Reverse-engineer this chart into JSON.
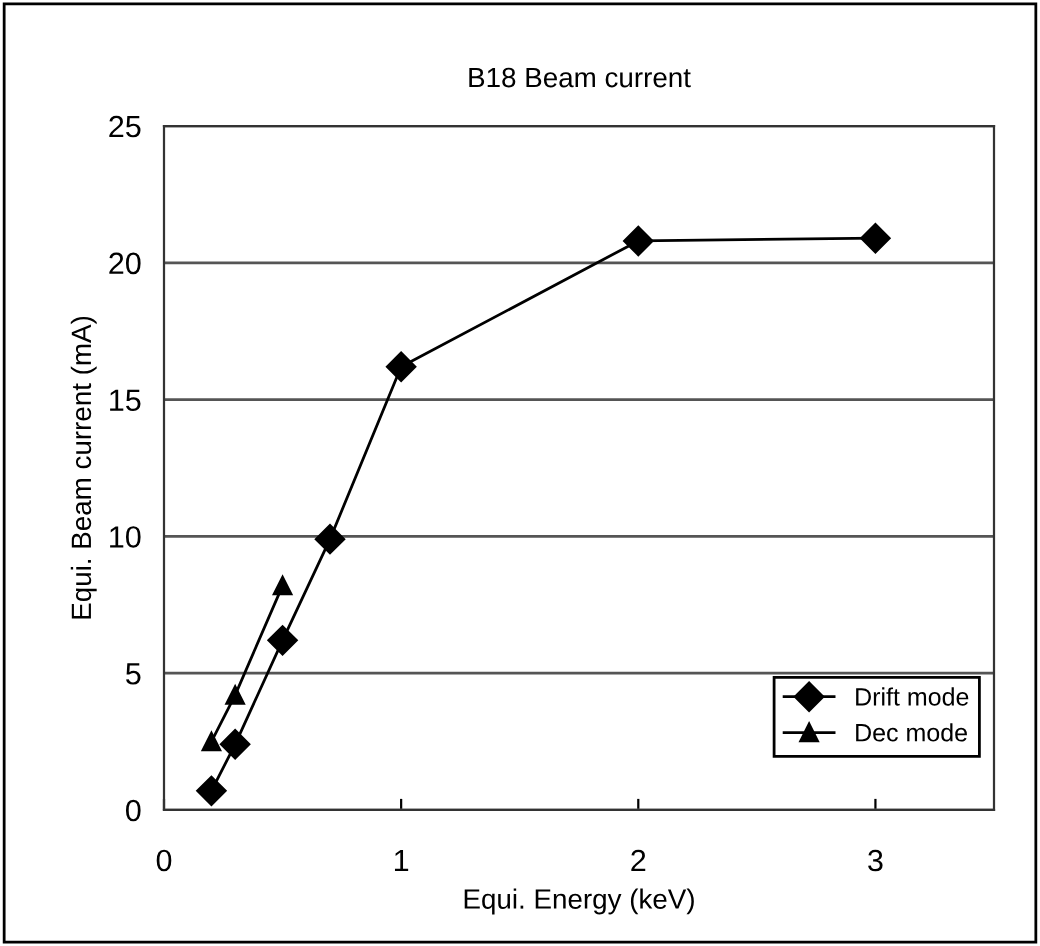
{
  "chart_data": {
    "type": "line",
    "title": "B18 Beam current",
    "xlabel": "Equi. Energy (keV)",
    "ylabel": "Equi. Beam current (mA)",
    "series": [
      {
        "name": "Drift mode",
        "color": "#000000",
        "marker": "diamond",
        "x": [
          0.2,
          0.3,
          0.5,
          0.7,
          1,
          2,
          3
        ],
        "values": [
          0.7,
          2.4,
          6.2,
          9.9,
          16.2,
          20.8,
          20.9
        ]
      },
      {
        "name": "Dec mode",
        "color": "#000000",
        "marker": "triangle",
        "x": [
          0.2,
          0.3,
          0.5
        ],
        "values": [
          2.5,
          4.2,
          8.2
        ]
      }
    ],
    "xlim": [
      0,
      3.5
    ],
    "xticks": [
      0,
      1,
      2,
      3
    ],
    "ylim": [
      0,
      25
    ],
    "yticks": [
      0,
      5,
      10,
      15,
      20,
      25
    ],
    "grid": "y",
    "legend": "bottom right",
    "line_style": "solid"
  }
}
